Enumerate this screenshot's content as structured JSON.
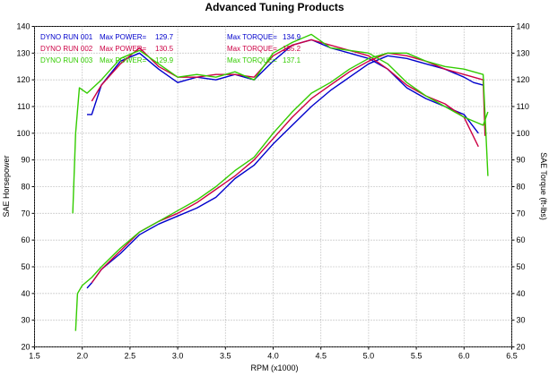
{
  "chart_data": {
    "type": "line",
    "title": "Advanced Tuning Products",
    "xlabel": "RPM (x1000)",
    "ylabel_left": "SAE Horsepower",
    "ylabel_right": "SAE Torque (ft-lbs)",
    "xlim": [
      1.5,
      6.5
    ],
    "ylim": [
      20,
      140
    ],
    "ylim_right": [
      20,
      140
    ],
    "x_ticks": [
      "1.5",
      "2.0",
      "2.5",
      "3.0",
      "3.5",
      "4.0",
      "4.5",
      "5.0",
      "5.5",
      "6.0",
      "6.5"
    ],
    "y_ticks": [
      "20",
      "30",
      "40",
      "50",
      "60",
      "70",
      "80",
      "90",
      "100",
      "110",
      "120",
      "130",
      "140"
    ],
    "grid": true,
    "legend": [
      {
        "run_label": "DYNO RUN 001",
        "power_label": "Max POWER=",
        "power_value": "129.7",
        "torque_label": "Max TORQUE=",
        "torque_value": "134.9",
        "color": "#0000cc"
      },
      {
        "run_label": "DYNO RUN 002",
        "power_label": "Max POWER=",
        "power_value": "130.5",
        "torque_label": "Max TORQUE=",
        "torque_value": "135.2",
        "color": "#cc0044"
      },
      {
        "run_label": "DYNO RUN 003",
        "power_label": "Max POWER=",
        "power_value": "129.9",
        "torque_label": "Max TORQUE=",
        "torque_value": "137.1",
        "color": "#33cc00"
      }
    ],
    "series": [
      {
        "color": "#0000cc",
        "hp_x": [
          2.05,
          2.1,
          2.2,
          2.4,
          2.6,
          2.8,
          3.0,
          3.2,
          3.4,
          3.6,
          3.8,
          4.0,
          4.2,
          4.4,
          4.6,
          4.8,
          5.0,
          5.2,
          5.4,
          5.6,
          5.8,
          6.0,
          6.1,
          6.2
        ],
        "hp_y": [
          42,
          44,
          49,
          55,
          62,
          66,
          69,
          72,
          76,
          83,
          88,
          96,
          103,
          110,
          116,
          121,
          126,
          129,
          128,
          126,
          124,
          121,
          119,
          118
        ],
        "tq_x": [
          2.05,
          2.1,
          2.2,
          2.4,
          2.6,
          2.8,
          3.0,
          3.2,
          3.4,
          3.6,
          3.8,
          4.0,
          4.2,
          4.4,
          4.6,
          4.8,
          5.0,
          5.2,
          5.4,
          5.6,
          5.8,
          6.0,
          6.15
        ],
        "tq_y": [
          107,
          107,
          118,
          127,
          130,
          124,
          119,
          121,
          120,
          122,
          120,
          127,
          133,
          135,
          132,
          130,
          128,
          124,
          117,
          113,
          110,
          107,
          100
        ]
      },
      {
        "color": "#cc0044",
        "hp_x": [
          2.1,
          2.2,
          2.4,
          2.6,
          2.8,
          3.0,
          3.2,
          3.4,
          3.6,
          3.8,
          4.0,
          4.2,
          4.4,
          4.6,
          4.8,
          5.0,
          5.2,
          5.4,
          5.6,
          5.8,
          6.0,
          6.2,
          6.22
        ],
        "hp_y": [
          44,
          49,
          56,
          63,
          67,
          70,
          74,
          79,
          84,
          90,
          98,
          106,
          113,
          118,
          123,
          127,
          130,
          129,
          127,
          124,
          122,
          120,
          99
        ],
        "tq_x": [
          2.1,
          2.2,
          2.4,
          2.6,
          2.8,
          3.0,
          3.2,
          3.4,
          3.6,
          3.8,
          4.0,
          4.2,
          4.4,
          4.6,
          4.8,
          5.0,
          5.2,
          5.4,
          5.6,
          5.8,
          6.0,
          6.15
        ],
        "tq_y": [
          112,
          118,
          126,
          132,
          125,
          121,
          121,
          122,
          122,
          121,
          129,
          133,
          135,
          133,
          131,
          129,
          124,
          118,
          114,
          111,
          106,
          95
        ]
      },
      {
        "color": "#33cc00",
        "hp_x": [
          1.93,
          1.95,
          2.0,
          2.1,
          2.2,
          2.4,
          2.6,
          2.8,
          3.0,
          3.2,
          3.4,
          3.6,
          3.8,
          4.0,
          4.2,
          4.4,
          4.6,
          4.8,
          5.0,
          5.2,
          5.4,
          5.6,
          5.8,
          6.0,
          6.2,
          6.25
        ],
        "hp_y": [
          26,
          40,
          43,
          46,
          50,
          57,
          63,
          67,
          71,
          75,
          80,
          86,
          91,
          100,
          108,
          115,
          119,
          124,
          128,
          130,
          130,
          127,
          125,
          124,
          122,
          84
        ],
        "tq_x": [
          1.9,
          1.93,
          1.97,
          2.05,
          2.2,
          2.4,
          2.6,
          2.8,
          3.0,
          3.2,
          3.4,
          3.6,
          3.8,
          4.0,
          4.2,
          4.4,
          4.6,
          4.8,
          5.0,
          5.2,
          5.4,
          5.6,
          5.8,
          6.0,
          6.2,
          6.25
        ],
        "tq_y": [
          70,
          100,
          117,
          115,
          120,
          128,
          131,
          126,
          121,
          122,
          121,
          123,
          120,
          130,
          134,
          137,
          132,
          131,
          130,
          126,
          119,
          114,
          110,
          106,
          103,
          108
        ]
      }
    ]
  }
}
